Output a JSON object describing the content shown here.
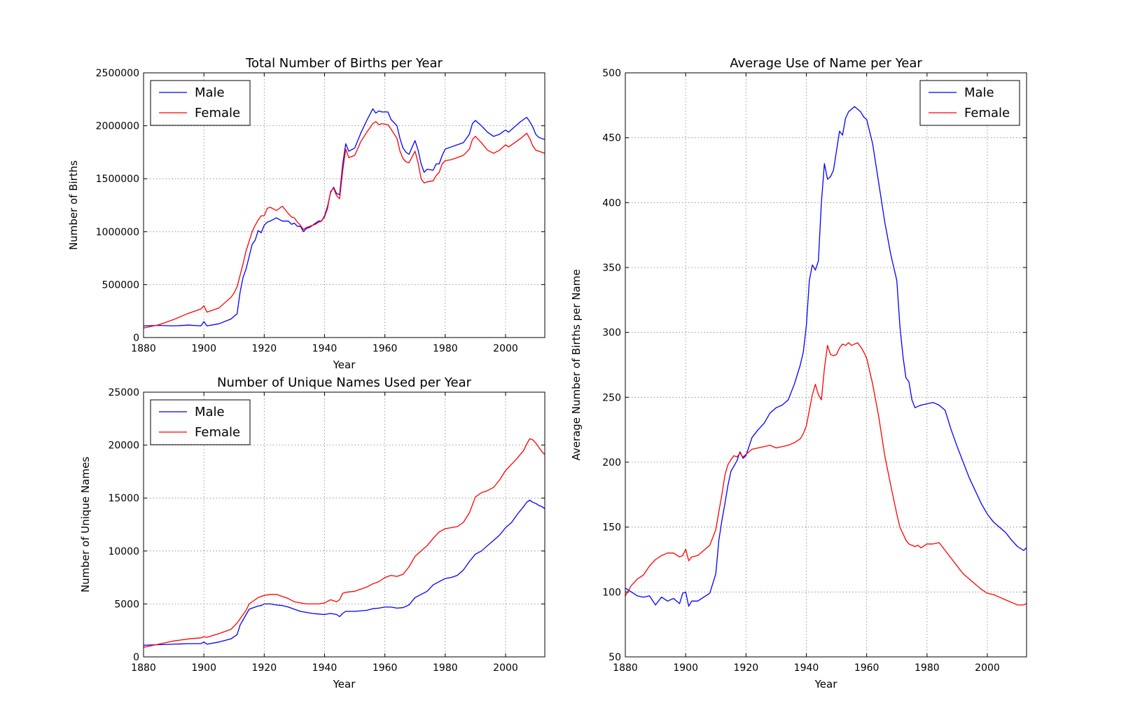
{
  "colors": {
    "male": "#0000ff",
    "female": "#ff0000",
    "grid": "#808080",
    "frame": "#000000"
  },
  "chart_data": [
    {
      "id": "births",
      "type": "line",
      "title": "Total Number of Births per Year",
      "xlabel": "Year",
      "ylabel": "Number of Births",
      "xlim": [
        1880,
        2013
      ],
      "ylim": [
        0,
        2500000
      ],
      "xticks": [
        1880,
        1900,
        1920,
        1940,
        1960,
        1980,
        2000
      ],
      "yticks": [
        0,
        500000,
        1000000,
        1500000,
        2000000,
        2500000
      ],
      "grid": true,
      "legend": "top-left",
      "x": [
        1880,
        1885,
        1890,
        1895,
        1899,
        1900,
        1901,
        1905,
        1909,
        1910,
        1911,
        1912,
        1913,
        1914,
        1916,
        1917,
        1918,
        1919,
        1920,
        1921,
        1922,
        1924,
        1926,
        1928,
        1929,
        1930,
        1931,
        1932,
        1933,
        1934,
        1935,
        1937,
        1938,
        1939,
        1940,
        1941,
        1942,
        1943,
        1944,
        1945,
        1946,
        1947,
        1948,
        1950,
        1952,
        1954,
        1956,
        1957,
        1958,
        1959,
        1961,
        1962,
        1964,
        1965,
        1966,
        1967,
        1968,
        1970,
        1971,
        1972,
        1973,
        1974,
        1976,
        1977,
        1978,
        1979,
        1980,
        1982,
        1984,
        1986,
        1988,
        1989,
        1990,
        1992,
        1994,
        1996,
        1998,
        2000,
        2001,
        2003,
        2005,
        2007,
        2008,
        2009,
        2010,
        2011,
        2013
      ],
      "series": [
        {
          "name": "Male",
          "values": [
            110000,
            115000,
            110000,
            118000,
            110000,
            150000,
            110000,
            130000,
            175000,
            200000,
            225000,
            430000,
            570000,
            650000,
            880000,
            920000,
            1010000,
            990000,
            1060000,
            1090000,
            1100000,
            1130000,
            1100000,
            1100000,
            1070000,
            1080000,
            1050000,
            1050000,
            1000000,
            1030000,
            1040000,
            1080000,
            1100000,
            1100000,
            1150000,
            1240000,
            1370000,
            1420000,
            1360000,
            1350000,
            1630000,
            1830000,
            1760000,
            1790000,
            1930000,
            2050000,
            2160000,
            2120000,
            2140000,
            2130000,
            2130000,
            2060000,
            2000000,
            1880000,
            1790000,
            1750000,
            1730000,
            1860000,
            1770000,
            1640000,
            1560000,
            1590000,
            1580000,
            1640000,
            1640000,
            1720000,
            1780000,
            1800000,
            1820000,
            1840000,
            1920000,
            2020000,
            2050000,
            2000000,
            1940000,
            1900000,
            1920000,
            1960000,
            1940000,
            1990000,
            2040000,
            2080000,
            2040000,
            1990000,
            1920000,
            1890000,
            1870000
          ]
        },
        {
          "name": "Female",
          "values": [
            90000,
            120000,
            170000,
            230000,
            270000,
            300000,
            240000,
            280000,
            380000,
            420000,
            480000,
            590000,
            700000,
            820000,
            1000000,
            1060000,
            1110000,
            1150000,
            1150000,
            1220000,
            1230000,
            1200000,
            1240000,
            1170000,
            1140000,
            1130000,
            1090000,
            1060000,
            1020000,
            1040000,
            1050000,
            1070000,
            1090000,
            1100000,
            1140000,
            1220000,
            1380000,
            1410000,
            1340000,
            1310000,
            1570000,
            1780000,
            1700000,
            1720000,
            1850000,
            1940000,
            2020000,
            2040000,
            2010000,
            2020000,
            2010000,
            1970000,
            1880000,
            1760000,
            1690000,
            1660000,
            1650000,
            1760000,
            1650000,
            1500000,
            1460000,
            1470000,
            1480000,
            1530000,
            1560000,
            1640000,
            1670000,
            1680000,
            1700000,
            1720000,
            1780000,
            1870000,
            1900000,
            1840000,
            1770000,
            1740000,
            1770000,
            1820000,
            1800000,
            1840000,
            1880000,
            1930000,
            1880000,
            1810000,
            1770000,
            1760000,
            1740000
          ]
        }
      ]
    },
    {
      "id": "unique",
      "type": "line",
      "title": "Number of Unique Names Used per Year",
      "xlabel": "Year",
      "ylabel": "Number of Unique Names",
      "xlim": [
        1880,
        2013
      ],
      "ylim": [
        0,
        25000
      ],
      "xticks": [
        1880,
        1900,
        1920,
        1940,
        1960,
        1980,
        2000
      ],
      "yticks": [
        0,
        5000,
        10000,
        15000,
        20000,
        25000
      ],
      "grid": true,
      "legend": "top-left",
      "x": [
        1880,
        1885,
        1890,
        1895,
        1899,
        1900,
        1901,
        1905,
        1909,
        1910,
        1911,
        1912,
        1913,
        1914,
        1915,
        1916,
        1917,
        1918,
        1919,
        1920,
        1922,
        1924,
        1926,
        1928,
        1930,
        1932,
        1934,
        1936,
        1938,
        1940,
        1942,
        1944,
        1945,
        1946,
        1947,
        1950,
        1954,
        1956,
        1958,
        1960,
        1962,
        1964,
        1966,
        1968,
        1970,
        1972,
        1974,
        1976,
        1978,
        1980,
        1982,
        1984,
        1986,
        1988,
        1990,
        1992,
        1994,
        1996,
        1998,
        2000,
        2002,
        2004,
        2006,
        2007,
        2008,
        2009,
        2010,
        2011,
        2012,
        2013
      ],
      "series": [
        {
          "name": "Male",
          "values": [
            1100,
            1150,
            1200,
            1250,
            1250,
            1400,
            1200,
            1400,
            1700,
            1900,
            2100,
            3000,
            3500,
            4000,
            4500,
            4600,
            4700,
            4800,
            4850,
            5000,
            5000,
            4900,
            4850,
            4700,
            4500,
            4300,
            4200,
            4100,
            4050,
            4000,
            4100,
            4000,
            3800,
            4100,
            4300,
            4300,
            4400,
            4550,
            4600,
            4700,
            4700,
            4600,
            4650,
            4900,
            5600,
            5900,
            6200,
            6800,
            7100,
            7400,
            7500,
            7700,
            8200,
            9000,
            9700,
            10000,
            10500,
            11000,
            11500,
            12200,
            12700,
            13500,
            14200,
            14600,
            14800,
            14600,
            14500,
            14300,
            14200,
            14000
          ]
        },
        {
          "name": "Female",
          "values": [
            900,
            1200,
            1500,
            1700,
            1800,
            1900,
            1850,
            2200,
            2600,
            2900,
            3200,
            3600,
            4000,
            4400,
            5000,
            5200,
            5400,
            5600,
            5700,
            5800,
            5900,
            5900,
            5700,
            5500,
            5200,
            5100,
            5000,
            5000,
            5000,
            5100,
            5400,
            5200,
            5400,
            6000,
            6100,
            6200,
            6600,
            6900,
            7100,
            7500,
            7700,
            7600,
            7800,
            8500,
            9500,
            10000,
            10500,
            11200,
            11800,
            12100,
            12200,
            12300,
            12700,
            13600,
            15100,
            15500,
            15700,
            16000,
            16700,
            17600,
            18200,
            18800,
            19500,
            20100,
            20600,
            20500,
            20200,
            19800,
            19400,
            19100
          ]
        }
      ]
    },
    {
      "id": "average",
      "type": "line",
      "title": "Average Use of Name per Year",
      "xlabel": "Year",
      "ylabel": "Average Number of Births per Name",
      "xlim": [
        1880,
        2013
      ],
      "ylim": [
        50,
        500
      ],
      "xticks": [
        1880,
        1900,
        1920,
        1940,
        1960,
        1980,
        2000
      ],
      "yticks": [
        50,
        100,
        150,
        200,
        250,
        300,
        350,
        400,
        450,
        500
      ],
      "grid": true,
      "legend": "top-right",
      "x": [
        1880,
        1882,
        1884,
        1886,
        1888,
        1890,
        1892,
        1894,
        1896,
        1898,
        1899,
        1900,
        1901,
        1902,
        1904,
        1906,
        1908,
        1910,
        1911,
        1912,
        1913,
        1914,
        1915,
        1916,
        1917,
        1918,
        1919,
        1920,
        1921,
        1922,
        1924,
        1926,
        1928,
        1930,
        1932,
        1934,
        1936,
        1938,
        1939,
        1940,
        1941,
        1942,
        1943,
        1944,
        1945,
        1946,
        1947,
        1948,
        1949,
        1950,
        1951,
        1952,
        1953,
        1954,
        1955,
        1956,
        1957,
        1958,
        1959,
        1960,
        1962,
        1964,
        1966,
        1968,
        1970,
        1971,
        1972,
        1973,
        1974,
        1975,
        1976,
        1977,
        1978,
        1980,
        1982,
        1984,
        1986,
        1988,
        1990,
        1992,
        1994,
        1996,
        1998,
        2000,
        2002,
        2004,
        2006,
        2008,
        2010,
        2012,
        2013
      ],
      "series": [
        {
          "name": "Male",
          "values": [
            103,
            100,
            97,
            96,
            97,
            90,
            96,
            93,
            95,
            91,
            99,
            100,
            89,
            93,
            93,
            96,
            99,
            114,
            140,
            155,
            168,
            182,
            193,
            197,
            201,
            208,
            203,
            205,
            212,
            219,
            225,
            230,
            238,
            242,
            244,
            248,
            260,
            275,
            285,
            305,
            340,
            352,
            348,
            355,
            400,
            430,
            418,
            420,
            425,
            440,
            455,
            452,
            465,
            470,
            472,
            474,
            472,
            470,
            466,
            464,
            445,
            415,
            385,
            360,
            340,
            305,
            282,
            265,
            262,
            248,
            242,
            243,
            244,
            245,
            246,
            244,
            240,
            225,
            212,
            200,
            188,
            178,
            168,
            160,
            154,
            150,
            146,
            140,
            135,
            132,
            134
          ]
        },
        {
          "name": "Female",
          "values": [
            97,
            105,
            110,
            113,
            120,
            125,
            128,
            130,
            130,
            127,
            128,
            133,
            124,
            127,
            128,
            132,
            136,
            148,
            162,
            175,
            190,
            198,
            202,
            205,
            204,
            207,
            204,
            206,
            208,
            210,
            211,
            212,
            213,
            211,
            212,
            213,
            215,
            218,
            222,
            228,
            240,
            252,
            260,
            252,
            248,
            272,
            290,
            283,
            282,
            283,
            288,
            291,
            290,
            292,
            290,
            291,
            292,
            289,
            285,
            280,
            260,
            235,
            205,
            182,
            160,
            150,
            145,
            140,
            137,
            136,
            135,
            136,
            134,
            137,
            137,
            138,
            132,
            126,
            120,
            114,
            110,
            106,
            102,
            99,
            98,
            96,
            94,
            92,
            90,
            90,
            91
          ]
        }
      ]
    }
  ]
}
